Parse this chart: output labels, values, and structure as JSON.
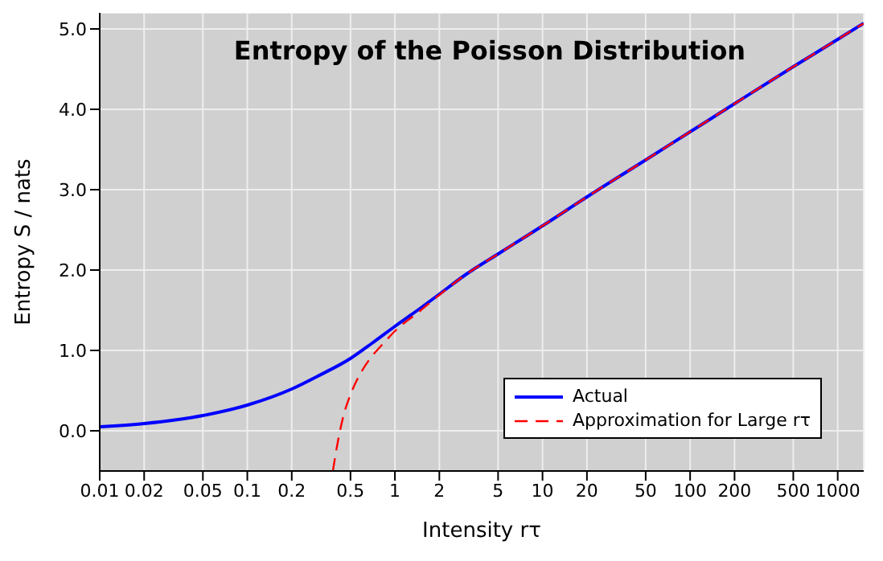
{
  "chart_data": {
    "type": "line",
    "title": "Entropy of the Poisson Distribution",
    "xlabel": "Intensity rτ",
    "ylabel": "Entropy S / nats",
    "log": "x",
    "grid": true,
    "legend": "bottom right",
    "marker": "none",
    "xlim": [
      0.01,
      1500
    ],
    "xticks": [
      0.01,
      0.02,
      0.05,
      0.1,
      0.2,
      0.5,
      1,
      2,
      5,
      10,
      20,
      50,
      100,
      200,
      500,
      1000
    ],
    "ylim": [
      -0.5,
      5.2
    ],
    "yticks": [
      {
        "value": 0,
        "label": "0.0"
      },
      {
        "value": 1,
        "label": "1.0"
      },
      {
        "value": 2,
        "label": "2.0"
      },
      {
        "value": 3,
        "label": "3.0"
      },
      {
        "value": 4,
        "label": "4.0"
      },
      {
        "value": 5,
        "label": "5.0"
      }
    ],
    "series": [
      {
        "name": "Actual",
        "color": "#0000ff",
        "line_style": "solid",
        "x": [
          0.01,
          0.02,
          0.05,
          0.1,
          0.2,
          0.3,
          0.5,
          0.7,
          1,
          1.5,
          2,
          3,
          5,
          7,
          10,
          20,
          50,
          100,
          200,
          500,
          1000,
          1500
        ],
        "values": [
          0.05,
          0.09,
          0.19,
          0.32,
          0.52,
          0.68,
          0.9,
          1.09,
          1.3,
          1.53,
          1.7,
          1.94,
          2.2,
          2.37,
          2.55,
          2.91,
          3.37,
          3.72,
          4.07,
          4.53,
          4.87,
          5.07
        ]
      },
      {
        "name": "Approximation for Large rτ",
        "color": "#ff0000",
        "line_style": "dashed",
        "x": [
          0.38,
          0.4,
          0.45,
          0.5,
          0.6,
          0.7,
          0.8,
          1,
          1.5,
          2,
          3,
          5,
          7,
          10,
          20,
          50,
          100,
          200,
          500,
          1000,
          1500
        ],
        "values": [
          -0.5,
          -0.25,
          0.2,
          0.45,
          0.75,
          0.93,
          1.05,
          1.24,
          1.5,
          1.69,
          1.94,
          2.2,
          2.37,
          2.55,
          2.91,
          3.37,
          3.72,
          4.07,
          4.53,
          4.87,
          5.07
        ]
      }
    ]
  }
}
